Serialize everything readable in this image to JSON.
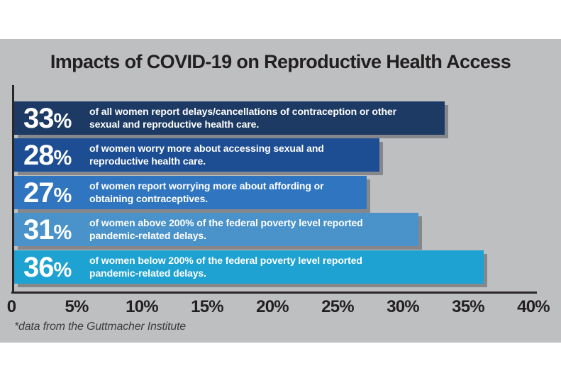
{
  "page": {
    "title": "Impacts of COVID-19 on Reproductive Health Access",
    "footnote": "*data from the Guttmacher Institute"
  },
  "chart_data": {
    "type": "bar",
    "orientation": "horizontal",
    "title": "Impacts of COVID-19 on Reproductive Health Access",
    "xlabel": "",
    "ylabel": "",
    "xlim": [
      0,
      40
    ],
    "x_tick_values": [
      0,
      5,
      10,
      15,
      20,
      25,
      30,
      35,
      40
    ],
    "x_tick_labels": [
      "0",
      "5%",
      "10%",
      "15%",
      "20%",
      "25%",
      "30%",
      "35%",
      "40%"
    ],
    "grid": false,
    "legend": false,
    "source_note": "*data from the Guttmacher Institute",
    "bars": [
      {
        "value": 33,
        "value_label": "33%",
        "lines": [
          "of all women report delays/cancellations of contraception or other",
          "sexual and reproductive health care."
        ],
        "color": "#1c3a64"
      },
      {
        "value": 28,
        "value_label": "28%",
        "lines": [
          "of women worry more about accessing sexual and",
          "reproductive health care."
        ],
        "color": "#1d4e94"
      },
      {
        "value": 27,
        "value_label": "27%",
        "lines": [
          "of women report worrying more about affording or",
          "obtaining contraceptives."
        ],
        "color": "#2f75c0"
      },
      {
        "value": 31,
        "value_label": "31%",
        "lines": [
          "of women above 200% of the federal poverty level reported",
          "pandemic-related delays."
        ],
        "color": "#4a92ca"
      },
      {
        "value": 36,
        "value_label": "36%",
        "lines": [
          "of women below 200% of the federal poverty level reported",
          "pandemic-related delays."
        ],
        "color": "#1da2d2"
      }
    ],
    "colors": {
      "page_background": "#ffffff",
      "panel_background": "#bdbfc1",
      "axis": "#2a272b",
      "bar_text": "#ffffff",
      "bar_shadow": "#85878a",
      "title_text": "#231f20",
      "tick_text": "#231f20",
      "footnote_text": "#3c3d3f"
    }
  }
}
